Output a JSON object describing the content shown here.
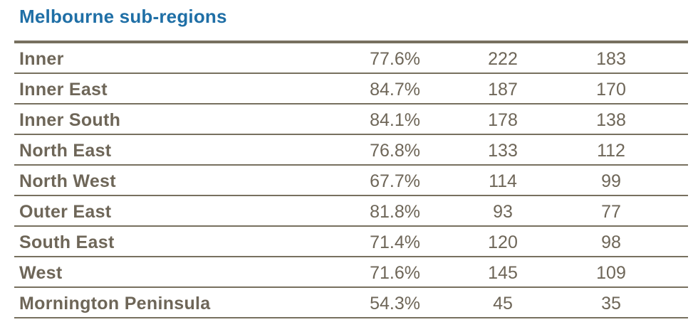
{
  "title": "Melbourne sub-regions",
  "rows": [
    {
      "name": "Inner",
      "pct": "77.6%",
      "v1": "222",
      "v2": "183"
    },
    {
      "name": "Inner East",
      "pct": "84.7%",
      "v1": "187",
      "v2": "170"
    },
    {
      "name": "Inner South",
      "pct": "84.1%",
      "v1": "178",
      "v2": "138"
    },
    {
      "name": "North East",
      "pct": "76.8%",
      "v1": "133",
      "v2": "112"
    },
    {
      "name": "North West",
      "pct": "67.7%",
      "v1": "114",
      "v2": "99"
    },
    {
      "name": "Outer East",
      "pct": "81.8%",
      "v1": "93",
      "v2": "77"
    },
    {
      "name": "South East",
      "pct": "71.4%",
      "v1": "120",
      "v2": "98"
    },
    {
      "name": "West",
      "pct": "71.6%",
      "v1": "145",
      "v2": "109"
    },
    {
      "name": "Mornington Peninsula",
      "pct": "54.3%",
      "v1": "45",
      "v2": "35"
    }
  ],
  "colors": {
    "title": "#1f6fa6",
    "text": "#6e6658",
    "rule": "#77705f"
  }
}
